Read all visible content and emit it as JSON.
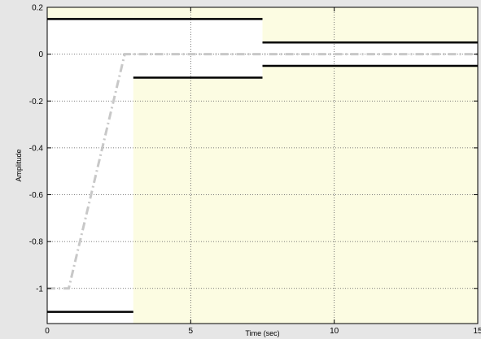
{
  "chart_data": {
    "type": "line",
    "title": "",
    "xlabel": "Time (sec)",
    "ylabel": "Amplitude",
    "xlim": [
      0,
      15
    ],
    "ylim": [
      -1.15,
      0.2
    ],
    "grid": true,
    "x_ticks": [
      0,
      5,
      10,
      15
    ],
    "x_tick_labels": [
      "0",
      "5",
      "10",
      "15"
    ],
    "y_ticks": [
      0.2,
      0,
      -0.2,
      -0.4,
      -0.6,
      -0.8,
      -1
    ],
    "y_tick_labels": [
      "0.2",
      "0",
      "-0.2",
      "-0.4",
      "-0.6",
      "-0.8",
      "-1"
    ],
    "colors": {
      "background": "#e6e6e6",
      "feasible_region": "#ffffff",
      "infeasible_region": "#fcfce2",
      "bound_line": "#000000",
      "response_line": "#c8c8c8",
      "grid": "#555555"
    },
    "constraint_regions": [
      {
        "x": [
          0,
          3
        ],
        "y": [
          0.15,
          0.2
        ],
        "infeasible": true
      },
      {
        "x": [
          3,
          7.5
        ],
        "y": [
          0.15,
          0.2
        ],
        "infeasible": true
      },
      {
        "x": [
          7.5,
          15
        ],
        "y": [
          0.05,
          0.2
        ],
        "infeasible": true
      },
      {
        "x": [
          3,
          7.5
        ],
        "y": [
          -1.15,
          -0.1
        ],
        "infeasible": true
      },
      {
        "x": [
          7.5,
          15
        ],
        "y": [
          -1.15,
          -0.05
        ],
        "infeasible": true
      }
    ],
    "bounds": [
      {
        "name": "upper-bound-1",
        "x": [
          0,
          7.5
        ],
        "y": 0.15
      },
      {
        "name": "upper-bound-2",
        "x": [
          7.5,
          15
        ],
        "y": 0.05
      },
      {
        "name": "lower-bound-1",
        "x": [
          0,
          3
        ],
        "y": -1.1
      },
      {
        "name": "lower-bound-2",
        "x": [
          3,
          7.5
        ],
        "y": -0.1
      },
      {
        "name": "lower-bound-3",
        "x": [
          7.5,
          15
        ],
        "y": -0.05
      }
    ],
    "series": [
      {
        "x": [
          0,
          0.75,
          2.7,
          15
        ],
        "y": [
          -1,
          -1,
          0,
          0
        ],
        "style": "dash-dot"
      }
    ]
  }
}
